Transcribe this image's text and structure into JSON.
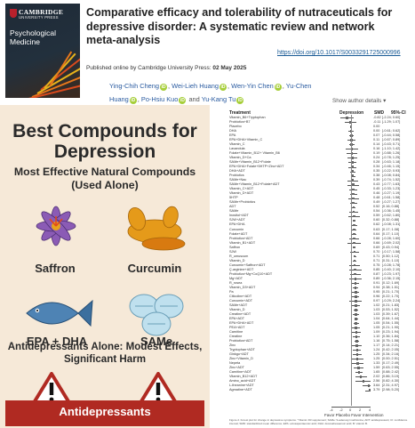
{
  "journal_cover": {
    "publisher_line1": "CAMBRIDGE",
    "publisher_line2": "UNIVERSITY PRESS",
    "journal_title": "Psychological Medicine"
  },
  "article": {
    "title": "Comparative efficacy and tolerability of nutraceuticals for depressive disorder: A systematic review and network meta-analysis",
    "doi": "https://doi.org/10.1017/S0033291725000996",
    "published_prefix": "Published online by Cambridge University Press:",
    "published_date": "02 May 2025",
    "authors": [
      "Ying-Chih Cheng",
      "Wei-Lieh Huang",
      "Wen-Yin Chen",
      "Yu-Chen Huang",
      "Po-Hsiu Kuo",
      "Yu-Kang Tu"
    ],
    "author_sep": ",",
    "author_last_sep": "and",
    "show_affiliations": "Show author details"
  },
  "infographic": {
    "title": "Best Compounds for Depression",
    "subtitle": "Most Effective Natural Compounds (Used Alone)",
    "compounds": [
      "Saffron",
      "Curcumin",
      "EPA + DHA",
      "SAMe"
    ],
    "antidep_heading": "Antidepressants Alone: Modest Effects, Significant Harm",
    "antidep_label": "Antidepressants",
    "colors": {
      "background": "#f6e9d8",
      "banner": "#b02a22",
      "warning": "#b02a22"
    }
  },
  "forest_plot": {
    "headers": {
      "treatment": "Treatment",
      "depression": "Depression",
      "smd": "SMD",
      "ci": "95%-CI"
    },
    "favor_label": "Favor Placebo  Favor Intervention",
    "caption": "Figure 2. Forest plot for change in depressive symptoms. ^Vitamin D3 supplement; SAMe: S-adenosyl methionine; ADT: antidepressant; CI: confidence interval; SMD: standardized mean difference; EPA: eicosapentaenoic acid; DHA: docosahexaenoic acid; B: vitamin B.",
    "chart_data": {
      "type": "forest",
      "xlim": [
        -4,
        4
      ],
      "x_ticks": [
        "-4",
        "-2",
        "0",
        "2",
        "4"
      ],
      "rows": [
        {
          "t": "Vitamin_B6+Tryptophan",
          "smd": "-0.82",
          "ci": "[-2.24; 0.60]",
          "est": -0.82,
          "lo": -2.24,
          "hi": 0.6
        },
        {
          "t": "Probiotics+B7",
          "smd": "-0.11",
          "ci": "[-1.29; 1.07]",
          "est": -0.11,
          "lo": -1.29,
          "hi": 1.07
        },
        {
          "t": "Placebo",
          "smd": "0.00",
          "ci": "",
          "est": 0.0,
          "lo": 0.0,
          "hi": 0.0
        },
        {
          "t": "DHA",
          "smd": "0.00",
          "ci": "[-0.61; 0.62]",
          "est": 0.0,
          "lo": -0.61,
          "hi": 0.62
        },
        {
          "t": "EPA",
          "smd": "0.07",
          "ci": "[-0.44; 0.58]",
          "est": 0.07,
          "lo": -0.44,
          "hi": 0.58
        },
        {
          "t": "EPA+DHA+Vitamin_C",
          "smd": "0.11",
          "ci": "[-0.67; 0.89]",
          "est": 0.11,
          "lo": -0.67,
          "hi": 0.89
        },
        {
          "t": "Vitamin_C",
          "smd": "0.14",
          "ci": "[-0.43; 0.71]",
          "est": 0.14,
          "lo": -0.43,
          "hi": 0.71
        },
        {
          "t": "Lavandula",
          "smd": "0.16",
          "ci": "[-1.10; 1.42]",
          "est": 0.16,
          "lo": -1.1,
          "hi": 1.42
        },
        {
          "t": "Folate+Vitamin_B12+ Vitamin_B6",
          "smd": "0.19",
          "ci": "[-0.88; 1.26]",
          "est": 0.19,
          "lo": -0.88,
          "hi": 1.26
        },
        {
          "t": "Vitamin_D+Ca",
          "smd": "0.24",
          "ci": "[-0.78; 1.25]",
          "est": 0.24,
          "lo": -0.78,
          "hi": 1.25
        },
        {
          "t": "SAMe+Vitamin_B12+Folate",
          "smd": "0.28",
          "ci": "[-0.63; 1.18]",
          "est": 0.28,
          "lo": -0.63,
          "hi": 1.18
        },
        {
          "t": "EPA+DHA+Folate+5HTP+Zinc+ADT",
          "smd": "0.34",
          "ci": "[-0.46; 1.15]",
          "est": 0.34,
          "lo": -0.46,
          "hi": 1.15
        },
        {
          "t": "DHA+ADT",
          "smd": "0.35",
          "ci": "[-0.22; 0.93]",
          "est": 0.35,
          "lo": -0.22,
          "hi": 0.93
        },
        {
          "t": "Probiotics",
          "smd": "0.38",
          "ci": "[-0.08; 0.84]",
          "est": 0.38,
          "lo": -0.08,
          "hi": 0.84
        },
        {
          "t": "SAMe+Nac",
          "smd": "0.39",
          "ci": "[-0.74; 1.52]",
          "est": 0.39,
          "lo": -0.74,
          "hi": 1.52
        },
        {
          "t": "SAMe+Vitamin_B12+Folate+ADT",
          "smd": "0.43",
          "ci": "[-0.77; 1.63]",
          "est": 0.43,
          "lo": -0.77,
          "hi": 1.63
        },
        {
          "t": "Vitamin_C+ADT",
          "smd": "0.45",
          "ci": "[-0.33; 1.23]",
          "est": 0.45,
          "lo": -0.33,
          "hi": 1.23
        },
        {
          "t": "Vitamin_D+ADT",
          "smd": "0.46",
          "ci": "[-0.27; 1.19]",
          "est": 0.46,
          "lo": -0.27,
          "hi": 1.19
        },
        {
          "t": "5HTP",
          "smd": "0.48",
          "ci": "[-0.61; 1.58]",
          "est": 0.48,
          "lo": -0.61,
          "hi": 1.58
        },
        {
          "t": "SAMe+Probiotics",
          "smd": "0.49",
          "ci": "[-0.27; 1.27]",
          "est": 0.49,
          "lo": -0.27,
          "hi": 1.27
        },
        {
          "t": "ADT",
          "smd": "0.52",
          "ci": "[0.16; 0.88]",
          "est": 0.52,
          "lo": 0.16,
          "hi": 0.88
        },
        {
          "t": "SAMe",
          "smd": "0.54",
          "ci": "[-0.36; 1.45]",
          "est": 0.54,
          "lo": -0.36,
          "hi": 1.45
        },
        {
          "t": "Inositol+ADT",
          "smd": "0.59",
          "ci": "[-0.62; 1.80]",
          "est": 0.59,
          "lo": -0.62,
          "hi": 1.8
        },
        {
          "t": "SJW+ADT",
          "smd": "0.60",
          "ci": "[0.32; 0.88]",
          "est": 0.6,
          "lo": 0.32,
          "hi": 0.88
        },
        {
          "t": "EPA+DHA",
          "smd": "0.62",
          "ci": "[-0.08; 1.31]",
          "est": 0.62,
          "lo": -0.08,
          "hi": 1.31
        },
        {
          "t": "Curcumin",
          "smd": "0.63",
          "ci": "[0.17; 1.08]",
          "est": 0.63,
          "lo": 0.17,
          "hi": 1.08
        },
        {
          "t": "Folate+ADT",
          "smd": "0.64",
          "ci": "[0.17; 1.10]",
          "est": 0.64,
          "lo": 0.17,
          "hi": 1.1
        },
        {
          "t": "Probiotics+ADT",
          "smd": "0.66",
          "ci": "[-0.28; 1.60]",
          "est": 0.66,
          "lo": -0.28,
          "hi": 1.6
        },
        {
          "t": "Vitamin_B1+ADT",
          "smd": "0.66",
          "ci": "[-0.69; 2.02]",
          "est": 0.66,
          "lo": -0.69,
          "hi": 2.02
        },
        {
          "t": "Saffron",
          "smd": "0.69",
          "ci": "[0.43; 0.94]",
          "est": 0.69,
          "lo": 0.43,
          "hi": 0.94
        },
        {
          "t": "SJW",
          "smd": "0.70",
          "ci": "[-0.17; 1.58]",
          "est": 0.7,
          "lo": -0.17,
          "hi": 1.58
        },
        {
          "t": "R_umuscum",
          "smd": "0.71",
          "ci": "[0.50; 1.12]",
          "est": 0.71,
          "lo": 0.5,
          "hi": 1.12
        },
        {
          "t": "Vitamin_D",
          "smd": "0.71",
          "ci": "[0.31; 1.10]",
          "est": 0.71,
          "lo": 0.31,
          "hi": 1.1
        },
        {
          "t": "Curcumin+Saffron+ADT",
          "smd": "0.75",
          "ci": "[-0.28; 1.78]",
          "est": 0.75,
          "lo": -0.28,
          "hi": 1.78
        },
        {
          "t": "Ҫ-arginine+ADT",
          "smd": "0.85",
          "ci": "[-0.40; 2.10]",
          "est": 0.85,
          "lo": -0.4,
          "hi": 2.1
        },
        {
          "t": "Probiotics+Mg+CoQ10+ADT",
          "smd": "0.87",
          "ci": "[-0.23; 1.97]",
          "est": 0.87,
          "lo": -0.23,
          "hi": 1.97
        },
        {
          "t": "Mg+ADT",
          "smd": "0.89",
          "ci": "[-0.36; 2.15]",
          "est": 0.89,
          "lo": -0.36,
          "hi": 2.15
        },
        {
          "t": "R_rosea",
          "smd": "0.91",
          "ci": "[0.12; 1.69]",
          "est": 0.91,
          "lo": 0.12,
          "hi": 1.69
        },
        {
          "t": "Vitamin_D3+ADT",
          "smd": "0.94",
          "ci": "[0.38; 1.51]",
          "est": 0.94,
          "lo": 0.38,
          "hi": 1.51
        },
        {
          "t": "Pa",
          "smd": "0.95",
          "ci": "[0.21; 1.70]",
          "est": 0.95,
          "lo": 0.21,
          "hi": 1.7
        },
        {
          "t": "Citicoline+ADT",
          "smd": "0.96",
          "ci": "[0.22; 1.70]",
          "est": 0.96,
          "lo": 0.22,
          "hi": 1.7
        },
        {
          "t": "Curcumin+ADT",
          "smd": "0.97",
          "ci": "[-0.29; 2.24]",
          "est": 0.97,
          "lo": -0.29,
          "hi": 2.24
        },
        {
          "t": "SAMe+ADT",
          "smd": "1.02",
          "ci": "[0.21; 1.83]",
          "est": 1.02,
          "lo": 0.21,
          "hi": 1.83
        },
        {
          "t": "Vitamin_D",
          "smd": "1.03",
          "ci": "[0.53; 1.52]",
          "est": 1.03,
          "lo": 0.53,
          "hi": 1.52
        },
        {
          "t": "Creatine+ADT",
          "smd": "1.03",
          "ci": "[0.39; 1.67]",
          "est": 1.03,
          "lo": 0.39,
          "hi": 1.67
        },
        {
          "t": "EPA+ADT",
          "smd": "1.04",
          "ci": "[0.64; 1.44]",
          "est": 1.04,
          "lo": 0.64,
          "hi": 1.44
        },
        {
          "t": "EPA+DHA+ADT",
          "smd": "1.05",
          "ci": "[0.54; 1.55]",
          "est": 1.05,
          "lo": 0.54,
          "hi": 1.55
        },
        {
          "t": "PEA+ADT",
          "smd": "1.05",
          "ci": "[0.21; 1.90]",
          "est": 1.05,
          "lo": 0.21,
          "hi": 1.9
        },
        {
          "t": "Carnitine",
          "smd": "1.09",
          "ci": "[0.23; 1.94]",
          "est": 1.09,
          "lo": 0.23,
          "hi": 1.94
        },
        {
          "t": "Creatine",
          "smd": "1.10",
          "ci": "[0.36; 1.84]",
          "est": 1.1,
          "lo": 0.36,
          "hi": 1.84
        },
        {
          "t": "Probiotics+ADT",
          "smd": "1.16",
          "ci": "[0.75; 1.58]",
          "est": 1.16,
          "lo": 0.75,
          "hi": 1.58
        },
        {
          "t": "Zinc",
          "smd": "1.17",
          "ci": "[0.14; 2.21]",
          "est": 1.17,
          "lo": 0.14,
          "hi": 2.21
        },
        {
          "t": "Tryptophan+ADT",
          "smd": "1.24",
          "ci": "[0.42; 2.05]",
          "est": 1.24,
          "lo": 0.42,
          "hi": 2.05
        },
        {
          "t": "Ginkgo+ADT",
          "smd": "1.25",
          "ci": "[0.34; 2.16]",
          "est": 1.25,
          "lo": 0.34,
          "hi": 2.16
        },
        {
          "t": "Zinc+Vitamin_D",
          "smd": "1.25",
          "ci": "[0.00; 2.51]",
          "est": 1.25,
          "lo": 0.0,
          "hi": 2.51
        },
        {
          "t": "Nepeta",
          "smd": "1.33",
          "ci": "[0.17; 2.49]",
          "est": 1.33,
          "lo": 0.17,
          "hi": 2.49
        },
        {
          "t": "Zinc+ADT",
          "smd": "1.59",
          "ci": "[0.63; 2.55]",
          "est": 1.59,
          "lo": 0.63,
          "hi": 2.55
        },
        {
          "t": "Carnitine+ADT",
          "smd": "1.65",
          "ci": "[0.88; 2.42]",
          "est": 1.65,
          "lo": 0.88,
          "hi": 2.42
        },
        {
          "t": "Vitamin_B12+ADT",
          "smd": "2.02",
          "ci": "[0.86; 3.19]",
          "est": 2.02,
          "lo": 0.86,
          "hi": 3.19
        },
        {
          "t": "Amino_acid+ADT",
          "smd": "2.56",
          "ci": "[0.82; 4.30]",
          "est": 2.56,
          "lo": 0.82,
          "hi": 4.3
        },
        {
          "t": "L-theanine+ADT",
          "smd": "3.64",
          "ci": "[2.31; 4.97]",
          "est": 3.64,
          "lo": 2.31,
          "hi": 4.97
        },
        {
          "t": "Agmatine+ADT",
          "smd": "3.79",
          "ci": "[2.98; 5.20]",
          "est": 3.79,
          "lo": 2.98,
          "hi": 5.2
        }
      ]
    }
  }
}
